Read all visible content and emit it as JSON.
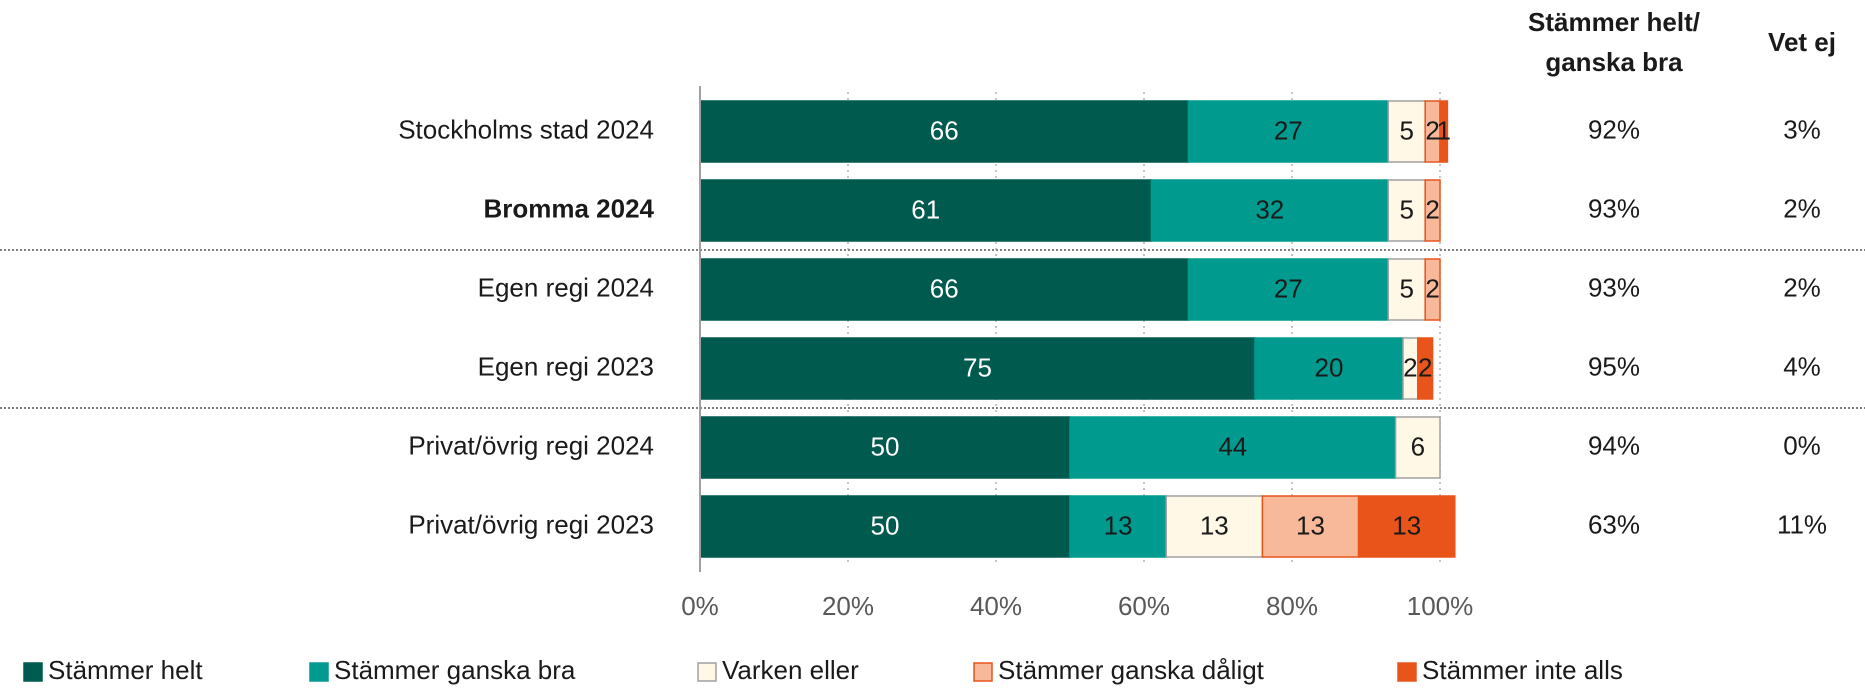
{
  "chart_data": {
    "type": "stacked-barh",
    "categories": [
      "Stockholms stad 2024",
      "Bromma 2024",
      "Egen regi 2024",
      "Egen regi 2023",
      "Privat/övrig regi 2024",
      "Privat/övrig regi 2023"
    ],
    "bold_categories": [
      "Bromma 2024"
    ],
    "series": [
      {
        "name": "Stämmer helt",
        "color": "#005a4e",
        "edgecolor": "#005a4e",
        "values": [
          66,
          61,
          66,
          75,
          50,
          50
        ]
      },
      {
        "name": "Stämmer ganska bra",
        "color": "#009a8e",
        "edgecolor": "#009a8e",
        "values": [
          27,
          32,
          27,
          20,
          44,
          13
        ]
      },
      {
        "name": "Varken eller",
        "color": "#fff8e6",
        "edgecolor": "#a0a0a0",
        "values": [
          5,
          5,
          5,
          2,
          6,
          13
        ]
      },
      {
        "name": "Stämmer ganska dåligt",
        "color": "#f8b99a",
        "edgecolor": "#e8541a",
        "values": [
          2,
          2,
          2,
          null,
          null,
          13
        ]
      },
      {
        "name": "Stämmer inte alls",
        "color": "#e8541a",
        "edgecolor": "#e8541a",
        "values": [
          1,
          null,
          null,
          2,
          null,
          13
        ]
      }
    ],
    "xlim": [
      0,
      100
    ],
    "xticks": [
      {
        "value": 0,
        "label": "0%"
      },
      {
        "value": 20,
        "label": "20%"
      },
      {
        "value": 40,
        "label": "40%"
      },
      {
        "value": 60,
        "label": "60%"
      },
      {
        "value": 80,
        "label": "80%"
      },
      {
        "value": 100,
        "label": "100%"
      }
    ],
    "grid": true,
    "separators_after": [
      1,
      3
    ],
    "side_columns": [
      {
        "header": [
          "Stämmer helt/",
          "ganska bra"
        ],
        "values": [
          "92%",
          "93%",
          "93%",
          "95%",
          "94%",
          "63%"
        ]
      },
      {
        "header": [
          "Vet ej"
        ],
        "values": [
          "3%",
          "2%",
          "2%",
          "4%",
          "0%",
          "11%"
        ]
      }
    ],
    "legend": "bottom"
  }
}
